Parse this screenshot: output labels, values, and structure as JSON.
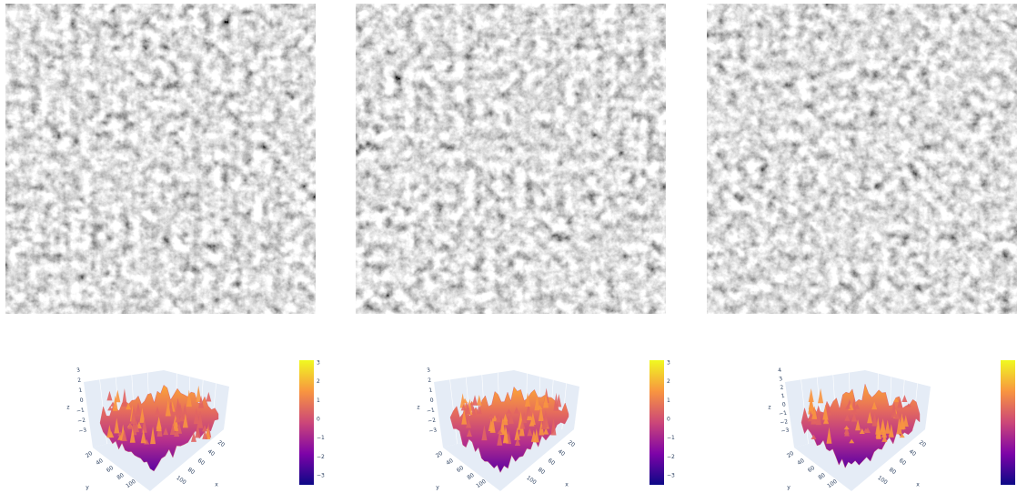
{
  "panels": [
    {
      "z_axis": {
        "title": "z",
        "ticks": [
          "3",
          "2",
          "1",
          "0",
          "−1",
          "−2",
          "−3"
        ]
      },
      "x_axis": {
        "title": "x",
        "ticks": [
          "20",
          "40",
          "60",
          "80",
          "100"
        ]
      },
      "y_axis": {
        "title": "y",
        "ticks": [
          "20",
          "40",
          "60",
          "80",
          "100"
        ]
      },
      "colorbar": {
        "ticks": [
          "3",
          "2",
          "1",
          "0",
          "−1",
          "−2",
          "−3"
        ]
      }
    },
    {
      "z_axis": {
        "title": "z",
        "ticks": [
          "3",
          "2",
          "1",
          "0",
          "−1",
          "−2",
          "−3"
        ]
      },
      "x_axis": {
        "title": "x",
        "ticks": [
          "20",
          "40",
          "60",
          "80",
          "100"
        ]
      },
      "y_axis": {
        "title": "y",
        "ticks": [
          "20",
          "40",
          "60",
          "80",
          "100"
        ]
      },
      "colorbar": {
        "ticks": [
          "3",
          "2",
          "1",
          "0",
          "−1",
          "−2",
          "−3"
        ]
      }
    },
    {
      "z_axis": {
        "title": "z",
        "ticks": [
          "4",
          "3",
          "2",
          "1",
          "0",
          "−1",
          "−2",
          "−3"
        ]
      },
      "x_axis": {
        "title": "x",
        "ticks": [
          "20",
          "40",
          "60",
          "80",
          "100"
        ]
      },
      "y_axis": {
        "title": "y",
        "ticks": [
          "20",
          "40",
          "60",
          "80",
          "100"
        ]
      }
    }
  ]
}
